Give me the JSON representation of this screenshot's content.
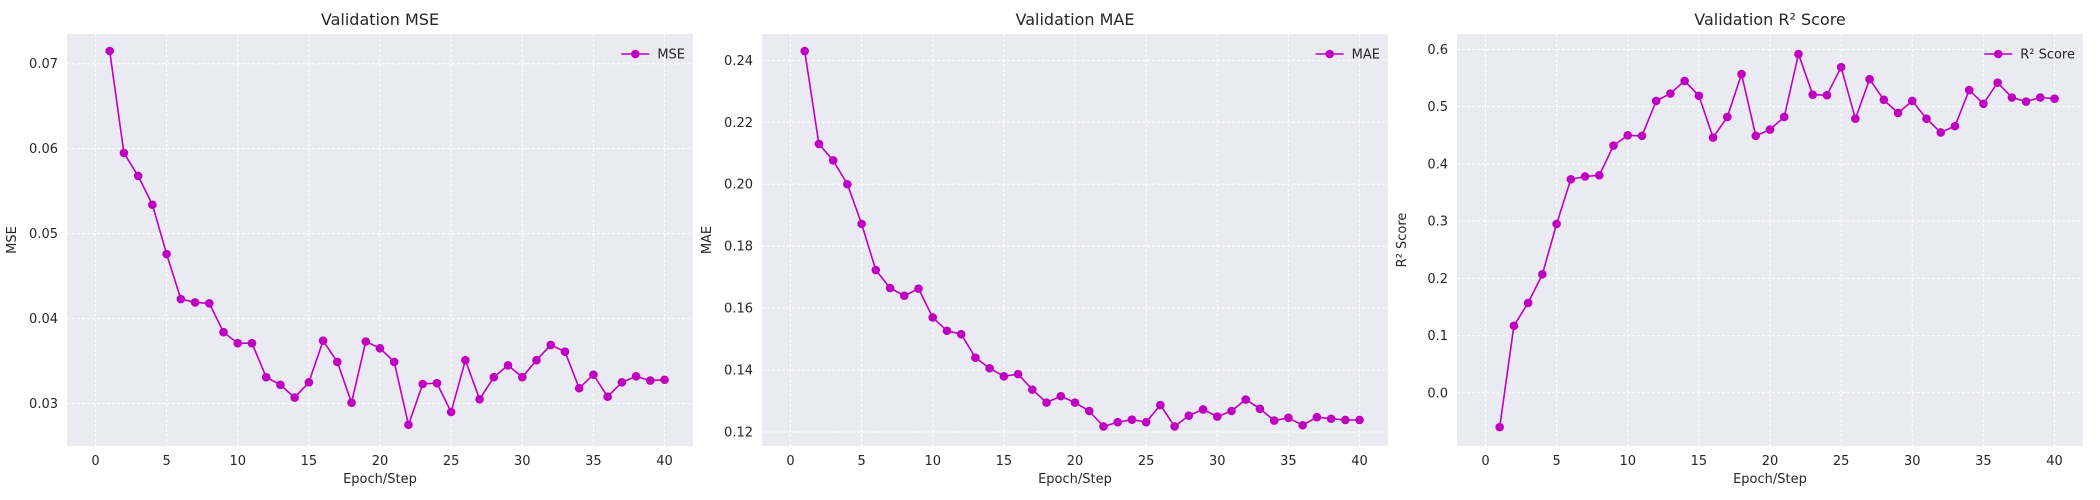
{
  "colors": {
    "line": "#c000c0",
    "panel_bg": "#eaeaf2",
    "grid": "#ffffff"
  },
  "chart_data": [
    {
      "type": "line",
      "title": "Validation MSE",
      "xlabel": "Epoch/Step",
      "ylabel": "MSE",
      "grid": true,
      "legend_position": "top-right",
      "xlim": [
        -2,
        42
      ],
      "ylim": [
        0.025,
        0.0735
      ],
      "xticks": [
        0,
        5,
        10,
        15,
        20,
        25,
        30,
        35,
        40
      ],
      "yticks": [
        0.03,
        0.04,
        0.05,
        0.06,
        0.07
      ],
      "ytick_labels": [
        "0.03",
        "0.04",
        "0.05",
        "0.06",
        "0.07"
      ],
      "series": [
        {
          "name": "MSE",
          "x": [
            1,
            2,
            3,
            4,
            5,
            6,
            7,
            8,
            9,
            10,
            11,
            12,
            13,
            14,
            15,
            16,
            17,
            18,
            19,
            20,
            21,
            22,
            23,
            24,
            25,
            26,
            27,
            28,
            29,
            30,
            31,
            32,
            33,
            34,
            35,
            36,
            37,
            38,
            39,
            40
          ],
          "y": [
            0.0715,
            0.0595,
            0.0568,
            0.0534,
            0.0476,
            0.0423,
            0.0419,
            0.0418,
            0.0384,
            0.0371,
            0.0371,
            0.0331,
            0.0322,
            0.0307,
            0.0325,
            0.0374,
            0.0349,
            0.0301,
            0.0373,
            0.0365,
            0.0349,
            0.0275,
            0.0323,
            0.0324,
            0.029,
            0.0351,
            0.0305,
            0.0331,
            0.0345,
            0.0331,
            0.0351,
            0.0369,
            0.0361,
            0.0318,
            0.0334,
            0.0308,
            0.0325,
            0.0332,
            0.0327,
            0.0328
          ]
        }
      ]
    },
    {
      "type": "line",
      "title": "Validation MAE",
      "xlabel": "Epoch/Step",
      "ylabel": "MAE",
      "grid": true,
      "legend_position": "top-right",
      "xlim": [
        -2,
        42
      ],
      "ylim": [
        0.1155,
        0.2485
      ],
      "xticks": [
        0,
        5,
        10,
        15,
        20,
        25,
        30,
        35,
        40
      ],
      "yticks": [
        0.12,
        0.14,
        0.16,
        0.18,
        0.2,
        0.22,
        0.24
      ],
      "ytick_labels": [
        "0.12",
        "0.14",
        "0.16",
        "0.18",
        "0.20",
        "0.22",
        "0.24"
      ],
      "series": [
        {
          "name": "MAE",
          "x": [
            1,
            2,
            3,
            4,
            5,
            6,
            7,
            8,
            9,
            10,
            11,
            12,
            13,
            14,
            15,
            16,
            17,
            18,
            19,
            20,
            21,
            22,
            23,
            24,
            25,
            26,
            27,
            28,
            29,
            30,
            31,
            32,
            33,
            34,
            35,
            36,
            37,
            38,
            39,
            40
          ],
          "y": [
            0.243,
            0.213,
            0.2077,
            0.2,
            0.1872,
            0.1723,
            0.1665,
            0.164,
            0.1663,
            0.157,
            0.1527,
            0.1516,
            0.144,
            0.1406,
            0.138,
            0.1387,
            0.1337,
            0.1295,
            0.1316,
            0.1295,
            0.1268,
            0.1218,
            0.1232,
            0.124,
            0.1232,
            0.1287,
            0.1218,
            0.1253,
            0.1273,
            0.125,
            0.1268,
            0.1305,
            0.1275,
            0.1237,
            0.1246,
            0.1222,
            0.1248,
            0.1243,
            0.1239,
            0.1239
          ]
        }
      ]
    },
    {
      "type": "line",
      "title": "Validation R² Score",
      "xlabel": "Epoch/Step",
      "ylabel": "R² Score",
      "grid": true,
      "legend_position": "top-right",
      "xlim": [
        -2,
        42
      ],
      "ylim": [
        -0.093,
        0.627
      ],
      "xticks": [
        0,
        5,
        10,
        15,
        20,
        25,
        30,
        35,
        40
      ],
      "yticks": [
        0.0,
        0.1,
        0.2,
        0.3,
        0.4,
        0.5,
        0.6
      ],
      "ytick_labels": [
        "0.0",
        "0.1",
        "0.2",
        "0.3",
        "0.4",
        "0.5",
        "0.6"
      ],
      "series": [
        {
          "name": "R² Score",
          "x": [
            1,
            2,
            3,
            4,
            5,
            6,
            7,
            8,
            9,
            10,
            11,
            12,
            13,
            14,
            15,
            16,
            17,
            18,
            19,
            20,
            21,
            22,
            23,
            24,
            25,
            26,
            27,
            28,
            29,
            30,
            31,
            32,
            33,
            34,
            35,
            36,
            37,
            38,
            39,
            40
          ],
          "y": [
            -0.06,
            0.117,
            0.157,
            0.207,
            0.295,
            0.373,
            0.378,
            0.38,
            0.432,
            0.45,
            0.449,
            0.51,
            0.523,
            0.545,
            0.519,
            0.446,
            0.482,
            0.557,
            0.449,
            0.46,
            0.482,
            0.592,
            0.521,
            0.52,
            0.569,
            0.479,
            0.548,
            0.512,
            0.489,
            0.51,
            0.479,
            0.455,
            0.466,
            0.529,
            0.505,
            0.542,
            0.516,
            0.509,
            0.516,
            0.514
          ]
        }
      ]
    }
  ]
}
